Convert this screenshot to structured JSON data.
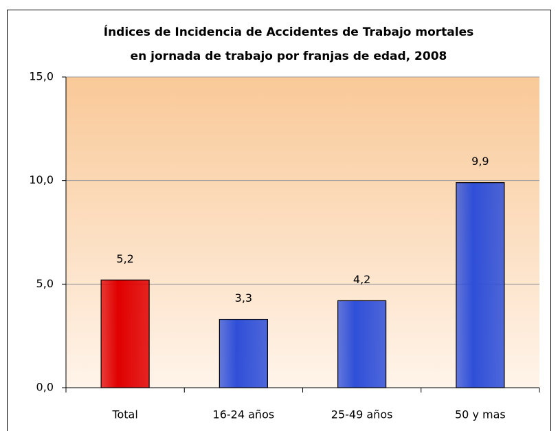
{
  "chart_data": {
    "type": "bar",
    "title": [
      "Índices de Incidencia de Accidentes de Trabajo mortales",
      "en jornada de trabajo por franjas de edad, 2008"
    ],
    "categories": [
      "Total",
      "16-24 años",
      "25-49 años",
      "50 y mas"
    ],
    "values": [
      5.2,
      3.3,
      4.2,
      9.9
    ],
    "value_labels": [
      "5,2",
      "3,3",
      "4,2",
      "9,9"
    ],
    "colors": [
      "#e00000",
      "#2f4fd8",
      "#2f4fd8",
      "#2f4fd8"
    ],
    "ylim": [
      0,
      15
    ],
    "yticks": [
      {
        "value": 0,
        "label": "0,0"
      },
      {
        "value": 5,
        "label": "5,0"
      },
      {
        "value": 10,
        "label": "10,0"
      },
      {
        "value": 15,
        "label": "15,0"
      }
    ],
    "grid": true
  }
}
